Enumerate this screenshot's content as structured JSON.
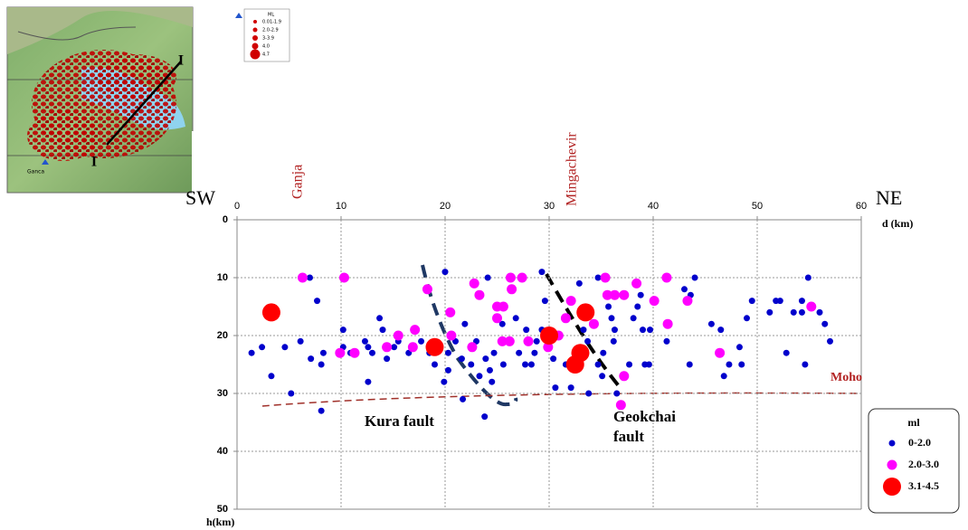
{
  "map": {
    "legend_title": "ML",
    "legend_items": [
      "0.01-1.9",
      "2.0-2.9",
      "3-3.9",
      "4.0",
      "4.7"
    ],
    "profile_labels": [
      "I",
      "I"
    ],
    "place": "Ganca"
  },
  "chart_data": {
    "type": "scatter",
    "x_label": "d (km)",
    "y_label": "h(km)",
    "xlim": [
      0,
      60
    ],
    "xticks": [
      0,
      10,
      20,
      30,
      40,
      50,
      60
    ],
    "ylim": [
      0,
      50
    ],
    "yticks": [
      0,
      10,
      20,
      30,
      40,
      50
    ],
    "y_inverted": true,
    "grid": true,
    "annotations": {
      "left_end": "SW",
      "right_end": "NE",
      "city1": "Ganja",
      "city2": "Mingachevir",
      "moho": "Moho",
      "fault1": "Kura fault",
      "fault2": "Geokchai fault"
    },
    "legend_title": "ml",
    "series": [
      {
        "name": "0-2.0",
        "color": "#0000cc",
        "x": [
          1.4,
          2.4,
          3.3,
          4.6,
          5.2,
          6.1,
          7,
          7.7,
          7.1,
          8.1,
          8.3,
          8.1,
          10.2,
          10.2,
          10.9,
          12.3,
          12.6,
          13,
          12.6,
          13.7,
          14,
          14.4,
          15.1,
          15.5,
          16.5,
          17.7,
          18.5,
          19,
          20,
          19.9,
          20.3,
          20.3,
          21,
          21.6,
          21.7,
          21.9,
          22.5,
          23,
          23.3,
          23.8,
          23.9,
          24.1,
          24.3,
          24.5,
          24.7,
          25.5,
          25.6,
          26.8,
          27.1,
          27.7,
          27.8,
          28.3,
          28.6,
          29.3,
          29.3,
          28.8,
          29.6,
          30.4,
          30.6,
          31.6,
          32.1,
          32.9,
          33.3,
          33.7,
          33.8,
          34.7,
          35.1,
          34.7,
          35.7,
          35.2,
          36,
          36.2,
          36.3,
          36.5,
          37.7,
          38.1,
          38.5,
          38.8,
          39.2,
          39,
          39.6,
          39.7,
          41.3,
          43,
          43.6,
          44,
          43.5,
          45.6,
          46.5,
          46.8,
          47.3,
          48.3,
          48.5,
          49,
          49.5,
          51.2,
          51.8,
          52.8,
          52.2,
          53.5,
          54.3,
          54.3,
          54.6,
          54.9,
          56,
          56.5,
          57
        ],
        "values": [
          23,
          22,
          27,
          22,
          30,
          21,
          10,
          14,
          24,
          25,
          23,
          33,
          19,
          22,
          23,
          21,
          22,
          23,
          28,
          17,
          19,
          24,
          22,
          21,
          23,
          21,
          23,
          25,
          9,
          28,
          23,
          26,
          21,
          24,
          31,
          18,
          25,
          21,
          27,
          34,
          24,
          10,
          26,
          28,
          23,
          18,
          25,
          17,
          23,
          25,
          19,
          25,
          23,
          9,
          19,
          21,
          14,
          24,
          29,
          25,
          29,
          11,
          19,
          21,
          30,
          25,
          27,
          10,
          15,
          23,
          17,
          21,
          19,
          30,
          25,
          17,
          15,
          13,
          25,
          19,
          25,
          19,
          21,
          12,
          13,
          10,
          25,
          18,
          19,
          27,
          25,
          22,
          25,
          17,
          14,
          16,
          14,
          23,
          14,
          16,
          16,
          14,
          25,
          10,
          16,
          18,
          21
        ]
      },
      {
        "name": "2.0-3.0",
        "color": "#ff00ff",
        "x": [
          6.3,
          10.3,
          9.9,
          11.3,
          14.4,
          15.5,
          17.1,
          18.3,
          16.9,
          20.5,
          20.6,
          22.6,
          22.8,
          23.3,
          25,
          25,
          25.6,
          26.3,
          26.4,
          25.5,
          26.2,
          27.4,
          28,
          29.9,
          30.9,
          32.1,
          31.6,
          34.3,
          35.4,
          35.6,
          36.3,
          37.2,
          36.9,
          37.2,
          38.4,
          40.1,
          41.3,
          41.4,
          43.3,
          46.4,
          55.2
        ],
        "values": [
          10,
          10,
          23,
          23,
          22,
          20,
          19,
          12,
          22,
          16,
          20,
          22,
          11,
          13,
          17,
          15,
          15,
          10,
          12,
          21,
          21,
          10,
          21,
          22,
          20,
          14,
          17,
          18,
          10,
          13,
          13,
          27,
          32,
          13,
          11,
          14,
          10,
          18,
          14,
          23,
          15
        ]
      },
      {
        "name": "3.1-4.5",
        "color": "#ff0000",
        "x": [
          3.3,
          19,
          30,
          33.5,
          33,
          32.5
        ],
        "values": [
          16,
          22,
          20,
          16,
          23,
          25
        ]
      }
    ]
  }
}
